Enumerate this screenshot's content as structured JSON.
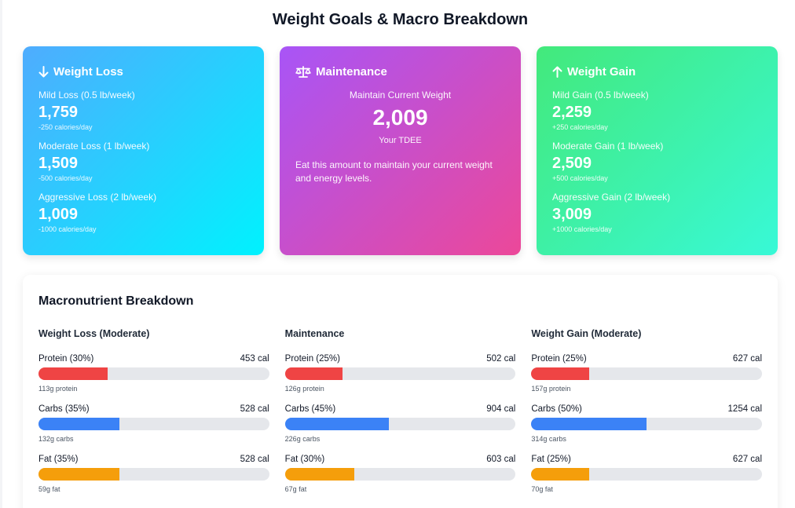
{
  "page_title": "Weight Goals & Macro Breakdown",
  "loss_card": {
    "title": "Weight Loss",
    "icon": "arrow-down-icon",
    "options": [
      {
        "label": "Mild Loss (0.5 lb/week)",
        "value": "1,759",
        "note": "-250 calories/day"
      },
      {
        "label": "Moderate Loss (1 lb/week)",
        "value": "1,509",
        "note": "-500 calories/day"
      },
      {
        "label": "Aggressive Loss (2 lb/week)",
        "value": "1,009",
        "note": "-1000 calories/day"
      }
    ]
  },
  "maint_card": {
    "title": "Maintenance",
    "icon": "scale-icon",
    "label": "Maintain Current Weight",
    "value": "2,009",
    "sub": "Your TDEE",
    "desc": "Eat this amount to maintain your current weight and energy levels."
  },
  "gain_card": {
    "title": "Weight Gain",
    "icon": "arrow-up-icon",
    "options": [
      {
        "label": "Mild Gain (0.5 lb/week)",
        "value": "2,259",
        "note": "+250 calories/day"
      },
      {
        "label": "Moderate Gain (1 lb/week)",
        "value": "2,509",
        "note": "+500 calories/day"
      },
      {
        "label": "Aggressive Gain (2 lb/week)",
        "value": "3,009",
        "note": "+1000 calories/day"
      }
    ]
  },
  "macros": {
    "title": "Macronutrient Breakdown",
    "columns": [
      {
        "title": "Weight Loss (Moderate)",
        "items": [
          {
            "label": "Protein (30%)",
            "cal": "453 cal",
            "grams": "113g protein",
            "percent": 30
          },
          {
            "label": "Carbs (35%)",
            "cal": "528 cal",
            "grams": "132g carbs",
            "percent": 35
          },
          {
            "label": "Fat (35%)",
            "cal": "528 cal",
            "grams": "59g fat",
            "percent": 35
          }
        ]
      },
      {
        "title": "Maintenance",
        "items": [
          {
            "label": "Protein (25%)",
            "cal": "502 cal",
            "grams": "126g protein",
            "percent": 25
          },
          {
            "label": "Carbs (45%)",
            "cal": "904 cal",
            "grams": "226g carbs",
            "percent": 45
          },
          {
            "label": "Fat (30%)",
            "cal": "603 cal",
            "grams": "67g fat",
            "percent": 30
          }
        ]
      },
      {
        "title": "Weight Gain (Moderate)",
        "items": [
          {
            "label": "Protein (25%)",
            "cal": "627 cal",
            "grams": "157g protein",
            "percent": 25
          },
          {
            "label": "Carbs (50%)",
            "cal": "1254 cal",
            "grams": "314g carbs",
            "percent": 50
          },
          {
            "label": "Fat (25%)",
            "cal": "627 cal",
            "grams": "70g fat",
            "percent": 25
          }
        ]
      }
    ]
  },
  "colors": {
    "protein": "#ef4444",
    "carbs": "#3b82f6",
    "fat": "#f59e0b"
  }
}
